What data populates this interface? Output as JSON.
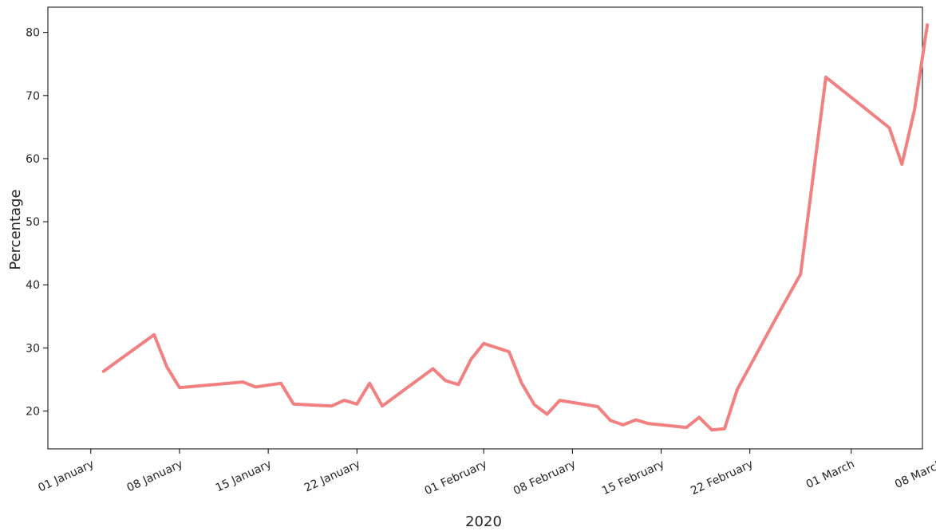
{
  "chart_data": {
    "type": "line",
    "title": "",
    "xlabel": "2020",
    "ylabel": "Percentage",
    "ylim": [
      14,
      84
    ],
    "xlim": [
      "2019-12-30",
      "2020-03-08"
    ],
    "grid": false,
    "line_color": "#f28080",
    "y_ticks": [
      20,
      30,
      40,
      50,
      60,
      70,
      80
    ],
    "x_ticks": [
      {
        "date": "2020-01-01",
        "label": "01 January"
      },
      {
        "date": "2020-01-08",
        "label": "08 January"
      },
      {
        "date": "2020-01-15",
        "label": "15 January"
      },
      {
        "date": "2020-01-22",
        "label": "22 January"
      },
      {
        "date": "2020-02-01",
        "label": "01 February"
      },
      {
        "date": "2020-02-08",
        "label": "08 February"
      },
      {
        "date": "2020-02-15",
        "label": "15 February"
      },
      {
        "date": "2020-02-22",
        "label": "22 February"
      },
      {
        "date": "2020-03-01",
        "label": "01 March"
      },
      {
        "date": "2020-03-08",
        "label": "08 March"
      }
    ],
    "series": [
      {
        "x": [
          "2020-01-02",
          "2020-01-06",
          "2020-01-07",
          "2020-01-08",
          "2020-01-13",
          "2020-01-14",
          "2020-01-16",
          "2020-01-17",
          "2020-01-20",
          "2020-01-21",
          "2020-01-22",
          "2020-01-23",
          "2020-01-24",
          "2020-01-28",
          "2020-01-29",
          "2020-01-30",
          "2020-01-31",
          "2020-02-01",
          "2020-02-03",
          "2020-02-04",
          "2020-02-05",
          "2020-02-06",
          "2020-02-07",
          "2020-02-10",
          "2020-02-11",
          "2020-02-12",
          "2020-02-13",
          "2020-02-14",
          "2020-02-17",
          "2020-02-18",
          "2020-02-19",
          "2020-02-20",
          "2020-02-21",
          "2020-02-24",
          "2020-02-26",
          "2020-02-28",
          "2020-03-04",
          "2020-03-05",
          "2020-03-06",
          "2020-03-07"
        ],
        "values": [
          26.3,
          32.1,
          27.0,
          23.7,
          24.6,
          23.8,
          24.4,
          21.1,
          20.8,
          21.7,
          21.1,
          24.4,
          20.8,
          26.7,
          24.8,
          24.2,
          28.2,
          30.7,
          29.4,
          24.4,
          21.0,
          19.5,
          21.7,
          20.7,
          18.5,
          17.8,
          18.6,
          18.0,
          17.4,
          19.0,
          17.0,
          17.2,
          23.4,
          34.5,
          41.7,
          72.9,
          64.9,
          59.1,
          67.8,
          81.2
        ]
      }
    ]
  }
}
